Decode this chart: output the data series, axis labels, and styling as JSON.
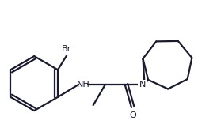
{
  "background_color": "#ffffff",
  "line_color": "#1a1a2e",
  "bond_lw": 1.6,
  "label_NH": "NH",
  "label_N": "N",
  "label_O": "O",
  "label_Br": "Br",
  "figsize": [
    2.74,
    1.67
  ],
  "dpi": 100
}
